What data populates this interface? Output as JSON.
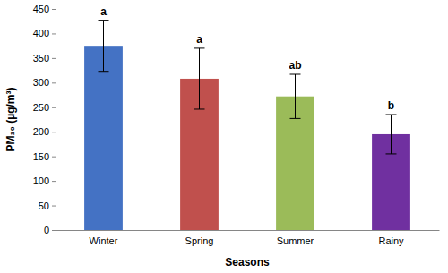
{
  "chart_data": {
    "type": "bar",
    "x_label": "Seasons",
    "y_label": "PM₁₀ (µg/m³)",
    "categories": [
      "Winter",
      "Spring",
      "Summer",
      "Rainy"
    ],
    "values": [
      375,
      308,
      272,
      195
    ],
    "errors": [
      52,
      62,
      45,
      40
    ],
    "annotations": [
      "a",
      "a",
      "ab",
      "b"
    ],
    "colors": [
      "#4472c4",
      "#c0504d",
      "#9bbb59",
      "#7030a0"
    ],
    "ylim": [
      0,
      450
    ],
    "yticks": [
      0,
      50,
      100,
      150,
      200,
      250,
      300,
      350,
      400,
      450
    ],
    "grid": false
  }
}
